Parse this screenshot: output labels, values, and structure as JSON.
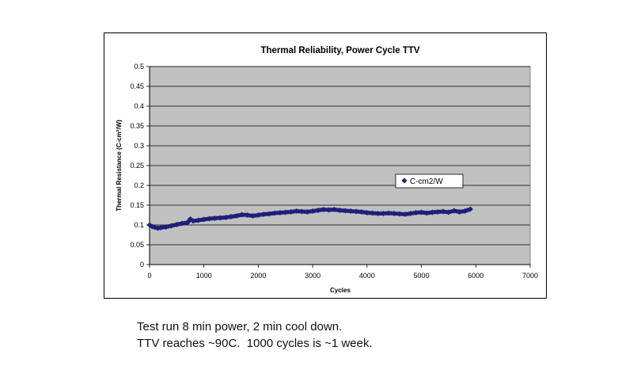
{
  "chart_data": {
    "type": "scatter",
    "title": "Thermal Reliability, Power Cycle TTV",
    "xlabel": "Cycles",
    "ylabel": "Thermal Resistance (C-cm²/W)",
    "xlim": [
      0,
      7000
    ],
    "ylim": [
      0,
      0.5
    ],
    "x_ticks": [
      "0",
      "1000",
      "2000",
      "3000",
      "4000",
      "5000",
      "6000",
      "7000"
    ],
    "y_ticks": [
      "0",
      "0.05",
      "0.1",
      "0.15",
      "0.2",
      "0.25",
      "0.3",
      "0.35",
      "0.4",
      "0.45",
      "0.5"
    ],
    "grid": true,
    "legend_position": "right",
    "plot_background": "#c0c0c0",
    "series": [
      {
        "name": "C-cm2/W",
        "color": "#1f1f7a",
        "marker": "diamond",
        "points": [
          [
            0,
            0.1
          ],
          [
            50,
            0.096
          ],
          [
            100,
            0.094
          ],
          [
            150,
            0.092
          ],
          [
            200,
            0.093
          ],
          [
            300,
            0.095
          ],
          [
            400,
            0.098
          ],
          [
            500,
            0.101
          ],
          [
            600,
            0.104
          ],
          [
            700,
            0.106
          ],
          [
            750,
            0.115
          ],
          [
            800,
            0.11
          ],
          [
            900,
            0.112
          ],
          [
            1000,
            0.114
          ],
          [
            1100,
            0.116
          ],
          [
            1200,
            0.117
          ],
          [
            1300,
            0.118
          ],
          [
            1400,
            0.119
          ],
          [
            1500,
            0.121
          ],
          [
            1600,
            0.123
          ],
          [
            1700,
            0.126
          ],
          [
            1800,
            0.125
          ],
          [
            1900,
            0.123
          ],
          [
            2000,
            0.125
          ],
          [
            2100,
            0.127
          ],
          [
            2200,
            0.128
          ],
          [
            2300,
            0.13
          ],
          [
            2400,
            0.131
          ],
          [
            2500,
            0.132
          ],
          [
            2600,
            0.133
          ],
          [
            2700,
            0.135
          ],
          [
            2800,
            0.134
          ],
          [
            2900,
            0.133
          ],
          [
            3000,
            0.135
          ],
          [
            3100,
            0.137
          ],
          [
            3200,
            0.139
          ],
          [
            3300,
            0.138
          ],
          [
            3400,
            0.139
          ],
          [
            3500,
            0.137
          ],
          [
            3600,
            0.136
          ],
          [
            3700,
            0.135
          ],
          [
            3800,
            0.134
          ],
          [
            3900,
            0.133
          ],
          [
            4000,
            0.131
          ],
          [
            4100,
            0.13
          ],
          [
            4200,
            0.129
          ],
          [
            4300,
            0.129
          ],
          [
            4400,
            0.13
          ],
          [
            4500,
            0.129
          ],
          [
            4600,
            0.128
          ],
          [
            4700,
            0.127
          ],
          [
            4800,
            0.129
          ],
          [
            4900,
            0.131
          ],
          [
            5000,
            0.132
          ],
          [
            5100,
            0.13
          ],
          [
            5200,
            0.132
          ],
          [
            5300,
            0.133
          ],
          [
            5400,
            0.134
          ],
          [
            5500,
            0.132
          ],
          [
            5600,
            0.136
          ],
          [
            5700,
            0.133
          ],
          [
            5800,
            0.135
          ],
          [
            5900,
            0.14
          ]
        ]
      }
    ]
  },
  "caption": {
    "line1": "Test run 8 min power, 2 min cool down.",
    "line2": "TTV reaches ~90C.  1000 cycles is ~1 week."
  }
}
